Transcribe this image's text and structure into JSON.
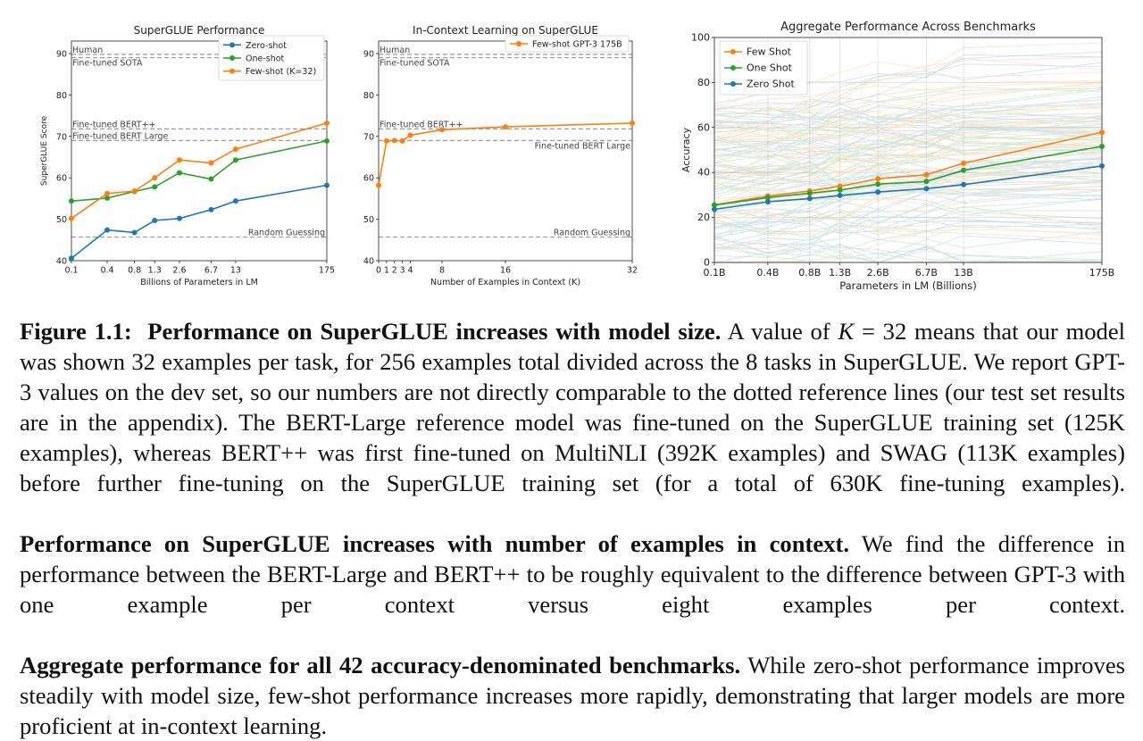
{
  "colors": {
    "few": "#ff7f0e",
    "one": "#2ca02c",
    "zero": "#1f77b4",
    "ref": "#9a9a9a",
    "grid": "#e6e6e6"
  },
  "chart_data": [
    {
      "id": "superglue",
      "type": "line",
      "title": "SuperGLUE Performance",
      "xlabel": "Billions of Parameters in LM",
      "ylabel": "SuperGLUE Score",
      "xticks": [
        "0.1",
        "0.4",
        "0.8",
        "1.3",
        "2.6",
        "6.7",
        "13",
        "175"
      ],
      "ylim": [
        40,
        93
      ],
      "yticks": [
        40,
        50,
        60,
        70,
        80,
        90
      ],
      "legend_position": "top-right",
      "series": [
        {
          "name": "Zero-shot",
          "color": "#1f77b4",
          "values": [
            40.6,
            47.4,
            46.8,
            49.7,
            50.2,
            52.3,
            54.4,
            58.2
          ]
        },
        {
          "name": "One-shot",
          "color": "#2ca02c",
          "values": [
            54.4,
            55.1,
            56.7,
            57.8,
            61.2,
            59.7,
            64.3,
            68.9
          ]
        },
        {
          "name": "Few-shot (K=32)",
          "color": "#ff7f0e",
          "values": [
            50.2,
            56.2,
            56.8,
            60.0,
            64.3,
            63.6,
            66.9,
            73.2
          ]
        }
      ],
      "reference_lines": [
        {
          "label": "Human",
          "value": 89.8,
          "label_side": "left",
          "label_pos": "above"
        },
        {
          "label": "Fine-tuned SOTA",
          "value": 89.0,
          "label_side": "left",
          "label_pos": "below"
        },
        {
          "label": "Fine-tuned BERT++",
          "value": 71.8,
          "label_side": "left",
          "label_pos": "above"
        },
        {
          "label": "Fine-tuned BERT Large",
          "value": 69.0,
          "label_side": "left",
          "label_pos": "above"
        },
        {
          "label": "Random Guessing",
          "value": 45.7,
          "label_side": "right",
          "label_pos": "above"
        }
      ]
    },
    {
      "id": "incontext",
      "type": "line",
      "title": "In-Context Learning on SuperGLUE",
      "xlabel": "Number of Examples in Context (K)",
      "ylabel": "",
      "x": [
        0,
        1,
        2,
        3,
        4,
        8,
        16,
        32
      ],
      "xticks": [
        "0",
        "1",
        "2",
        "3",
        "4",
        "8",
        "16",
        "32"
      ],
      "ylim": [
        40,
        93
      ],
      "yticks": [
        40,
        50,
        60,
        70,
        80,
        90
      ],
      "legend_position": "top-right",
      "series": [
        {
          "name": "Few-shot GPT-3 175B",
          "color": "#ff7f0e",
          "values": [
            58.2,
            68.9,
            69.0,
            68.9,
            70.3,
            71.6,
            72.3,
            73.2
          ]
        }
      ],
      "reference_lines": [
        {
          "label": "Human",
          "value": 89.8,
          "label_side": "left",
          "label_pos": "above"
        },
        {
          "label": "Fine-tuned SOTA",
          "value": 89.0,
          "label_side": "left",
          "label_pos": "below"
        },
        {
          "label": "Fine-tuned BERT++",
          "value": 71.8,
          "label_side": "left",
          "label_pos": "above"
        },
        {
          "label": "Fine-tuned BERT Large",
          "value": 69.0,
          "label_side": "right",
          "label_pos": "below"
        },
        {
          "label": "Random Guessing",
          "value": 45.7,
          "label_side": "right",
          "label_pos": "above"
        }
      ]
    },
    {
      "id": "aggregate",
      "type": "line",
      "title": "Aggregate Performance Across Benchmarks",
      "xlabel": "Parameters in LM (Billions)",
      "ylabel": "Accuracy",
      "xticks": [
        "0.1B",
        "0.4B",
        "0.8B",
        "1.3B",
        "2.6B",
        "6.7B",
        "13B",
        "175B"
      ],
      "ylim": [
        0,
        100
      ],
      "yticks": [
        0,
        20,
        40,
        60,
        80,
        100
      ],
      "grid": true,
      "legend_position": "top-left",
      "background_lines": "faint per-benchmark curves (42 benchmarks, few/one/zero-shot)",
      "series": [
        {
          "name": "Few Shot",
          "color": "#ff7f0e",
          "values": [
            25.6,
            29.5,
            31.8,
            33.9,
            37.2,
            39.0,
            44.1,
            57.9
          ]
        },
        {
          "name": "One Shot",
          "color": "#2ca02c",
          "values": [
            25.5,
            28.8,
            30.8,
            32.2,
            34.8,
            36.0,
            41.0,
            51.6
          ]
        },
        {
          "name": "Zero Shot",
          "color": "#1f77b4",
          "values": [
            23.6,
            27.0,
            28.4,
            29.8,
            31.3,
            32.8,
            34.6,
            42.9
          ]
        }
      ]
    }
  ],
  "caption": {
    "p1_label": "Figure 1.1:",
    "p1_title": "Performance on SuperGLUE increases with model size.",
    "p1_pre": "A value of",
    "p1_k": "K",
    "p1_eq": " = 32",
    "p1_rest": "means that our model was shown 32 examples per task, for 256 examples total divided across the 8 tasks in SuperGLUE. We report GPT-3 values on the dev set, so our numbers are not directly comparable to the dotted reference lines (our test set results are in the appendix). The BERT-Large reference model was fine-tuned on the SuperGLUE training set (125K examples), whereas BERT++ was first fine-tuned on MultiNLI (392K examples) and SWAG (113K examples) before further fine-tuning on the SuperGLUE training set (for a total of 630K fine-tuning examples).",
    "p2_title": "Performance on SuperGLUE increases with number of examples in context.",
    "p2_rest": "We find the difference in performance between the BERT-Large and BERT++ to be roughly equivalent to the difference between GPT-3 with one example per context versus eight examples per context.",
    "p3_title": "Aggregate performance for all 42 accuracy-denominated benchmarks.",
    "p3_rest": "While zero-shot performance improves steadily with model size, few-shot performance increases more rapidly, demonstrating that larger models are more proficient at in-context learning."
  }
}
